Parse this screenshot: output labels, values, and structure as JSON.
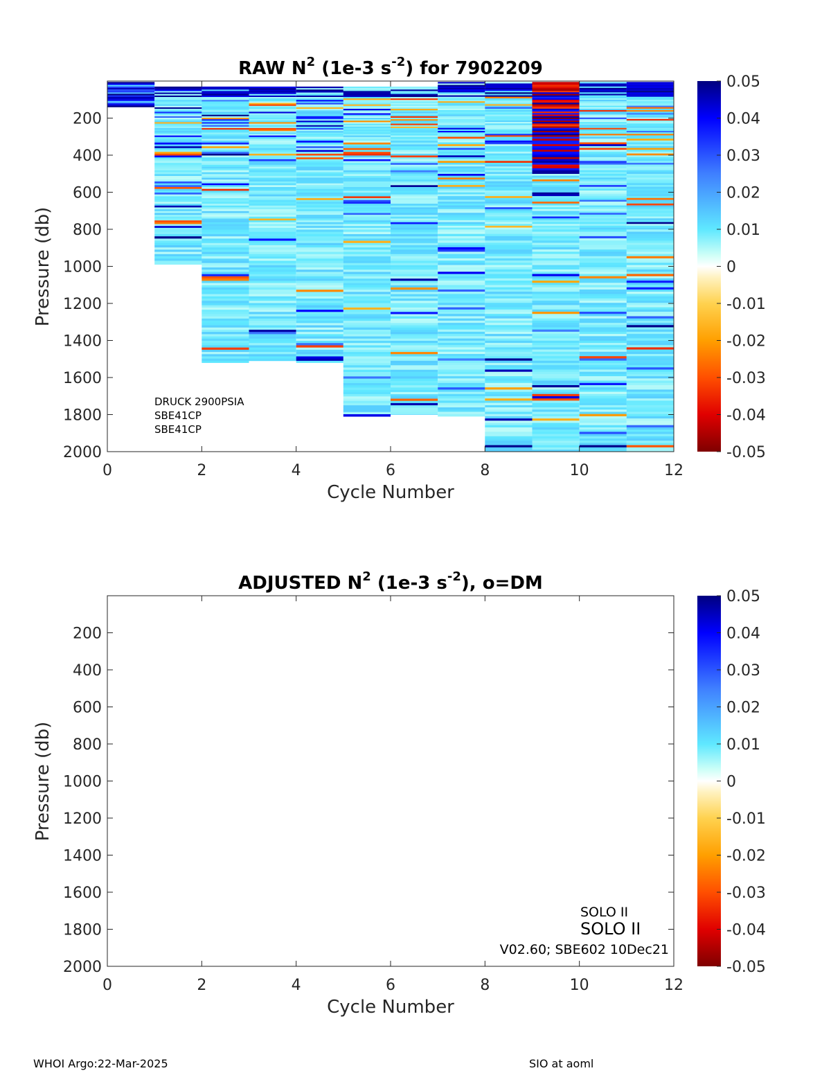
{
  "chart_data": [
    {
      "type": "heatmap",
      "title": "RAW N2 (1e-3 s-2) for 7902209",
      "title_parts": {
        "a": "RAW N",
        "sup1": "2",
        "b": " (1e-3 s",
        "sup2": "-2",
        "c": ") for 7902209"
      },
      "xlabel": "Cycle Number",
      "ylabel": "Pressure (db)",
      "xlim": [
        0,
        12
      ],
      "ylim": [
        0,
        2000
      ],
      "y_reversed": true,
      "xticks": [
        "0",
        "2",
        "4",
        "6",
        "8",
        "10",
        "12"
      ],
      "yticks": [
        "200",
        "400",
        "600",
        "800",
        "1000",
        "1200",
        "1400",
        "1600",
        "1800",
        "2000"
      ],
      "clim": [
        -0.05,
        0.05
      ],
      "colorbar_ticks": [
        "0.05",
        "0.04",
        "0.03",
        "0.02",
        "0.01",
        "0",
        "-0.01",
        "-0.02",
        "-0.03",
        "-0.04",
        "-0.05"
      ],
      "colormap": "blue-cyan-white-yellow-red",
      "cycles": [
        {
          "x0": 0,
          "x1": 1,
          "pmin": 5,
          "pmax": 140,
          "profile": "strong-shallow"
        },
        {
          "x0": 1,
          "x1": 2,
          "pmin": 30,
          "pmax": 990,
          "profile": "mixed-upper"
        },
        {
          "x0": 2,
          "x1": 3,
          "pmin": 30,
          "pmax": 1520,
          "profile": "mixed"
        },
        {
          "x0": 3,
          "x1": 4,
          "pmin": 30,
          "pmax": 1510,
          "profile": "mixed"
        },
        {
          "x0": 4,
          "x1": 5,
          "pmin": 30,
          "pmax": 1520,
          "profile": "mixed"
        },
        {
          "x0": 5,
          "x1": 6,
          "pmin": 30,
          "pmax": 1810,
          "profile": "mixed-upper"
        },
        {
          "x0": 6,
          "x1": 7,
          "pmin": 30,
          "pmax": 1800,
          "profile": "mixed"
        },
        {
          "x0": 7,
          "x1": 8,
          "pmin": 5,
          "pmax": 1810,
          "profile": "mixed"
        },
        {
          "x0": 8,
          "x1": 9,
          "pmin": 5,
          "pmax": 2000,
          "profile": "mixed"
        },
        {
          "x0": 9,
          "x1": 10,
          "pmin": 5,
          "pmax": 2000,
          "profile": "strong-upper"
        },
        {
          "x0": 10,
          "x1": 11,
          "pmin": 5,
          "pmax": 2000,
          "profile": "mixed"
        },
        {
          "x0": 11,
          "x1": 12,
          "pmin": 5,
          "pmax": 2000,
          "profile": "mixed"
        }
      ],
      "annotations": [
        "DRUCK 2900PSIA",
        "SBE41CP",
        "SBE41CP"
      ]
    },
    {
      "type": "heatmap",
      "title": "ADJUSTED N2 (1e-3 s-2), o=DM",
      "title_parts": {
        "a": "ADJUSTED N",
        "sup1": "2",
        "b": " (1e-3 s",
        "sup2": "-2",
        "c": "), o=DM"
      },
      "xlabel": "Cycle Number",
      "ylabel": "Pressure (db)",
      "xlim": [
        0,
        12
      ],
      "ylim": [
        0,
        2000
      ],
      "y_reversed": true,
      "xticks": [
        "0",
        "2",
        "4",
        "6",
        "8",
        "10",
        "12"
      ],
      "yticks": [
        "200",
        "400",
        "600",
        "800",
        "1000",
        "1200",
        "1400",
        "1600",
        "1800",
        "2000"
      ],
      "clim": [
        -0.05,
        0.05
      ],
      "colorbar_ticks": [
        "0.05",
        "0.04",
        "0.03",
        "0.02",
        "0.01",
        "0",
        "-0.01",
        "-0.02",
        "-0.03",
        "-0.04",
        "-0.05"
      ],
      "colormap": "blue-cyan-white-yellow-red",
      "cycles": [],
      "annotations": [
        "SOLO II",
        "SOLO II",
        "V02.60; SBE602 10Dec21"
      ]
    }
  ],
  "footer": {
    "left": "WHOI Argo:22-Mar-2025",
    "right": "SIO at aoml"
  }
}
